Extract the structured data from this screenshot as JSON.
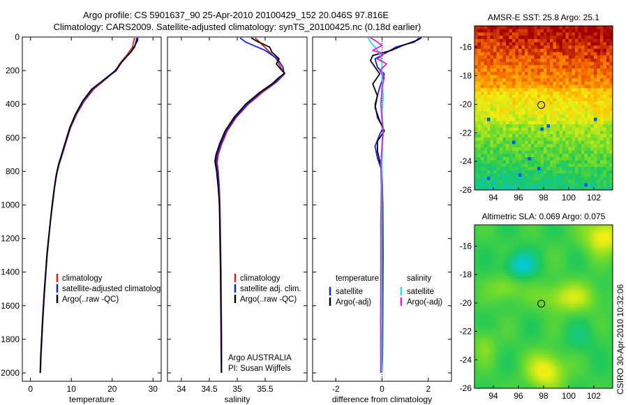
{
  "header": {
    "title_line1": "Argo profile: CS 5901637_90 25-Apr-2010 20100429_152 20.046S 97.816E",
    "title_line2": "Climatology: CARS2009. Satellite-adjusted climatology: synTS_20100425.nc (0.18d earlier)"
  },
  "colors": {
    "climatology": "#d62020",
    "satellite": "#1020e0",
    "argo": "#000000",
    "satellite_diff_sal": "#20e0e8",
    "argo_diff_sal": "#e020d0"
  },
  "footer": {
    "credit": "CSIRO 30-Apr-2010 10:32:06",
    "float_owner": "Argo AUSTRALIA",
    "pi": "PI: Susan Wijffels"
  },
  "chart_data": [
    {
      "type": "line",
      "id": "temperature",
      "xlabel": "temperature",
      "ylabel": "",
      "xlim": [
        -2,
        32
      ],
      "ylim": [
        2050,
        0
      ],
      "xticks": [
        0,
        10,
        20,
        30
      ],
      "yticks": [
        0,
        200,
        400,
        600,
        800,
        1000,
        1200,
        1400,
        1600,
        1800,
        2000
      ],
      "legend": {
        "placement": "lower-right",
        "entries": [
          "climatology",
          "satellite-adjusted climatology",
          "Argo(..raw -QC)"
        ]
      },
      "series": [
        {
          "name": "climatology",
          "color_key": "climatology",
          "points": [
            [
              25.5,
              5
            ],
            [
              25.3,
              20
            ],
            [
              25.0,
              60
            ],
            [
              23.5,
              110
            ],
            [
              21.8,
              160
            ],
            [
              20.8,
              200
            ],
            [
              18.5,
              250
            ],
            [
              15.5,
              310
            ],
            [
              13.2,
              380
            ],
            [
              11.3,
              460
            ],
            [
              9.8,
              540
            ],
            [
              8.8,
              620
            ],
            [
              7.8,
              700
            ],
            [
              7.0,
              760
            ],
            [
              6.4,
              820
            ],
            [
              5.9,
              900
            ],
            [
              5.4,
              1000
            ],
            [
              4.9,
              1100
            ],
            [
              4.5,
              1200
            ],
            [
              4.1,
              1300
            ],
            [
              3.8,
              1400
            ],
            [
              3.5,
              1500
            ],
            [
              3.25,
              1600
            ],
            [
              3.0,
              1700
            ],
            [
              2.8,
              1800
            ],
            [
              2.6,
              1900
            ],
            [
              2.45,
              2000
            ]
          ]
        },
        {
          "name": "satellite-adjusted climatology",
          "color_key": "satellite",
          "points": [
            [
              26.0,
              5
            ],
            [
              25.9,
              20
            ],
            [
              25.5,
              60
            ],
            [
              23.8,
              110
            ],
            [
              22.0,
              160
            ],
            [
              21.0,
              200
            ],
            [
              18.3,
              250
            ],
            [
              15.2,
              310
            ],
            [
              13.0,
              380
            ],
            [
              11.1,
              460
            ],
            [
              9.7,
              540
            ],
            [
              8.7,
              620
            ],
            [
              7.7,
              700
            ],
            [
              6.9,
              760
            ],
            [
              6.35,
              820
            ],
            [
              5.85,
              900
            ],
            [
              5.35,
              1000
            ],
            [
              4.85,
              1100
            ],
            [
              4.45,
              1200
            ],
            [
              4.05,
              1300
            ],
            [
              3.75,
              1400
            ],
            [
              3.45,
              1500
            ],
            [
              3.2,
              1600
            ],
            [
              2.95,
              1700
            ],
            [
              2.75,
              1800
            ],
            [
              2.55,
              1900
            ],
            [
              2.4,
              2000
            ]
          ]
        },
        {
          "name": "Argo(..raw -QC)",
          "color_key": "argo",
          "points": [
            [
              26.3,
              5
            ],
            [
              26.2,
              20
            ],
            [
              25.6,
              50
            ],
            [
              24.6,
              90
            ],
            [
              22.6,
              140
            ],
            [
              21.5,
              180
            ],
            [
              20.5,
              205
            ],
            [
              18.2,
              250
            ],
            [
              15.0,
              310
            ],
            [
              12.8,
              380
            ],
            [
              11.0,
              460
            ],
            [
              9.6,
              540
            ],
            [
              8.6,
              620
            ],
            [
              7.6,
              700
            ],
            [
              6.85,
              760
            ],
            [
              6.3,
              820
            ],
            [
              5.8,
              900
            ],
            [
              5.3,
              1000
            ],
            [
              4.85,
              1100
            ],
            [
              4.4,
              1200
            ],
            [
              4.0,
              1300
            ],
            [
              3.7,
              1400
            ],
            [
              3.4,
              1500
            ],
            [
              3.15,
              1600
            ],
            [
              2.9,
              1700
            ],
            [
              2.7,
              1800
            ],
            [
              2.5,
              1900
            ],
            [
              2.35,
              2000
            ]
          ]
        }
      ]
    },
    {
      "type": "line",
      "id": "salinity",
      "xlabel": "salinity",
      "ylabel": "",
      "xlim": [
        33.75,
        36.25
      ],
      "ylim": [
        2050,
        0
      ],
      "xticks": [
        34,
        34.5,
        35,
        35.5
      ],
      "legend": {
        "placement": "lower-right",
        "entries": [
          "climatology",
          "satellite adj. clim.",
          "Argo(..raw -QC)"
        ]
      },
      "series": [
        {
          "name": "climatology",
          "color_key": "climatology",
          "points": [
            [
              35.32,
              5
            ],
            [
              35.4,
              30
            ],
            [
              35.55,
              80
            ],
            [
              35.7,
              130
            ],
            [
              35.78,
              180
            ],
            [
              35.85,
              220
            ],
            [
              35.7,
              270
            ],
            [
              35.45,
              330
            ],
            [
              35.2,
              400
            ],
            [
              34.98,
              480
            ],
            [
              34.82,
              560
            ],
            [
              34.72,
              640
            ],
            [
              34.66,
              700
            ],
            [
              34.64,
              750
            ],
            [
              34.66,
              800
            ],
            [
              34.68,
              900
            ],
            [
              34.69,
              1000
            ],
            [
              34.7,
              1200
            ],
            [
              34.71,
              1400
            ],
            [
              34.715,
              1600
            ],
            [
              34.72,
              1800
            ],
            [
              34.72,
              2000
            ]
          ]
        },
        {
          "name": "satellite adj. clim.",
          "color_key": "satellite",
          "points": [
            [
              35.05,
              5
            ],
            [
              35.15,
              30
            ],
            [
              35.5,
              80
            ],
            [
              35.72,
              130
            ],
            [
              35.82,
              180
            ],
            [
              35.84,
              220
            ],
            [
              35.68,
              270
            ],
            [
              35.42,
              330
            ],
            [
              35.18,
              400
            ],
            [
              34.96,
              480
            ],
            [
              34.8,
              560
            ],
            [
              34.7,
              640
            ],
            [
              34.64,
              700
            ],
            [
              34.62,
              750
            ],
            [
              34.65,
              800
            ],
            [
              34.67,
              900
            ],
            [
              34.685,
              1000
            ],
            [
              34.695,
              1200
            ],
            [
              34.705,
              1400
            ],
            [
              34.71,
              1600
            ],
            [
              34.715,
              1800
            ],
            [
              34.72,
              2000
            ]
          ]
        },
        {
          "name": "Argo(..raw -QC)",
          "color_key": "argo",
          "points": [
            [
              35.25,
              5
            ],
            [
              35.35,
              25
            ],
            [
              35.58,
              60
            ],
            [
              35.62,
              90
            ],
            [
              35.75,
              130
            ],
            [
              35.7,
              160
            ],
            [
              35.8,
              200
            ],
            [
              35.85,
              215
            ],
            [
              35.75,
              240
            ],
            [
              35.62,
              280
            ],
            [
              35.4,
              330
            ],
            [
              35.15,
              400
            ],
            [
              34.94,
              480
            ],
            [
              34.78,
              560
            ],
            [
              34.68,
              640
            ],
            [
              34.62,
              700
            ],
            [
              34.6,
              740
            ],
            [
              34.63,
              800
            ],
            [
              34.66,
              900
            ],
            [
              34.68,
              1000
            ],
            [
              34.69,
              1200
            ],
            [
              34.7,
              1400
            ],
            [
              34.705,
              1600
            ],
            [
              34.71,
              1800
            ],
            [
              34.715,
              2000
            ]
          ]
        }
      ]
    },
    {
      "type": "line",
      "id": "difference",
      "xlabel": "difference from climatology",
      "ylabel": "",
      "xlim": [
        -3,
        3
      ],
      "ylim": [
        2050,
        0
      ],
      "xticks": [
        -2,
        0,
        2
      ],
      "legend": {
        "placement": "lower-right",
        "entries": [
          {
            "group": "temperature",
            "items": [
              "satellite",
              "Argo(-adj)"
            ]
          },
          {
            "group": "salinity",
            "items": [
              "satellite",
              "Argo(-adj)"
            ]
          }
        ]
      },
      "series": [
        {
          "name": "satellite",
          "group": "temperature",
          "color_key": "satellite",
          "points": [
            [
              1.6,
              5
            ],
            [
              1.4,
              30
            ],
            [
              0.6,
              60
            ],
            [
              0.1,
              100
            ],
            [
              -0.3,
              130
            ],
            [
              -0.2,
              180
            ],
            [
              0.1,
              220
            ],
            [
              -0.1,
              300
            ],
            [
              -0.3,
              400
            ],
            [
              -0.2,
              480
            ],
            [
              0.05,
              540
            ],
            [
              -0.1,
              580
            ],
            [
              -0.3,
              650
            ],
            [
              -0.2,
              720
            ],
            [
              0.0,
              800
            ],
            [
              0.02,
              1000
            ],
            [
              0.03,
              1200
            ],
            [
              0.02,
              1500
            ],
            [
              0.0,
              1800
            ],
            [
              0.0,
              2000
            ]
          ]
        },
        {
          "name": "Argo(-adj)",
          "group": "temperature",
          "color_key": "argo",
          "points": [
            [
              1.7,
              5
            ],
            [
              1.5,
              20
            ],
            [
              0.9,
              50
            ],
            [
              0.4,
              80
            ],
            [
              -0.4,
              110
            ],
            [
              -0.5,
              140
            ],
            [
              -0.3,
              180
            ],
            [
              -0.1,
              220
            ],
            [
              -0.4,
              280
            ],
            [
              -0.2,
              350
            ],
            [
              -0.3,
              420
            ],
            [
              -0.1,
              500
            ],
            [
              0.1,
              560
            ],
            [
              -0.2,
              620
            ],
            [
              -0.2,
              680
            ],
            [
              -0.1,
              740
            ],
            [
              0.0,
              800
            ],
            [
              0.03,
              1000
            ],
            [
              0.04,
              1300
            ],
            [
              0.03,
              1600
            ],
            [
              0.02,
              1900
            ],
            [
              0.0,
              2000
            ]
          ]
        },
        {
          "name": "satellite",
          "group": "salinity",
          "color_key": "satellite_diff_sal",
          "points": [
            [
              -0.6,
              5
            ],
            [
              -0.5,
              30
            ],
            [
              -0.3,
              60
            ],
            [
              -0.1,
              100
            ],
            [
              0.0,
              150
            ],
            [
              0.0,
              250
            ],
            [
              0.05,
              350
            ],
            [
              0.0,
              450
            ],
            [
              0.05,
              550
            ],
            [
              0.02,
              650
            ],
            [
              0.0,
              750
            ],
            [
              0.0,
              1000
            ],
            [
              0.0,
              1500
            ],
            [
              0.0,
              2000
            ]
          ]
        },
        {
          "name": "Argo(-adj)",
          "group": "salinity",
          "color_key": "argo_diff_sal",
          "points": [
            [
              -0.5,
              5
            ],
            [
              -0.3,
              20
            ],
            [
              0.0,
              50
            ],
            [
              -0.4,
              80
            ],
            [
              0.1,
              100
            ],
            [
              -0.2,
              130
            ],
            [
              0.2,
              160
            ],
            [
              -0.1,
              200
            ],
            [
              0.1,
              240
            ],
            [
              0.0,
              300
            ],
            [
              -0.05,
              400
            ],
            [
              0.0,
              500
            ],
            [
              0.05,
              560
            ],
            [
              0.0,
              650
            ],
            [
              -0.05,
              750
            ],
            [
              -0.03,
              900
            ],
            [
              -0.05,
              1100
            ],
            [
              -0.05,
              1400
            ],
            [
              -0.06,
              1700
            ],
            [
              -0.05,
              2000
            ]
          ]
        }
      ]
    },
    {
      "type": "heatmap",
      "id": "sst_map",
      "title": "AMSR-E SST: 25.8 Argo: 25.1",
      "xlim": [
        92.5,
        103.5
      ],
      "ylim": [
        -26,
        -14.5
      ],
      "xticks": [
        94,
        96,
        98,
        100,
        102
      ],
      "yticks": [
        -26,
        -24,
        -22,
        -20,
        -18,
        -16
      ],
      "marker": [
        97.816,
        -20.046
      ]
    },
    {
      "type": "heatmap",
      "id": "sla_map",
      "title": "Altimetric SLA: 0.069 Argo: 0.075",
      "xlim": [
        92.5,
        103.5
      ],
      "ylim": [
        -26,
        -14.5
      ],
      "xticks": [
        94,
        96,
        98,
        100,
        102
      ],
      "yticks": [
        -26,
        -24,
        -22,
        -20,
        -18,
        -16
      ],
      "marker": [
        97.816,
        -20.046
      ]
    }
  ]
}
